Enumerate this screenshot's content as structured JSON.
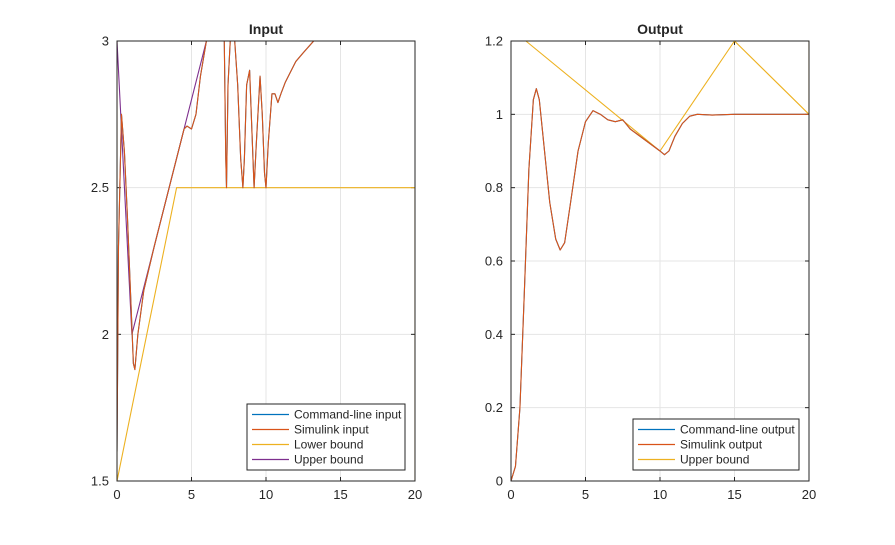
{
  "chart_data": [
    {
      "type": "line",
      "title": "Input",
      "xlabel": "",
      "ylabel": "",
      "xlim": [
        0,
        20
      ],
      "ylim": [
        1.5,
        3
      ],
      "xticks": [
        "0",
        "5",
        "10",
        "15",
        "20"
      ],
      "yticks": [
        "1.5",
        "2",
        "2.5",
        "3"
      ],
      "grid": true,
      "legend_position": "bottom-right",
      "series": [
        {
          "name": "Command-line input",
          "color": "#0072BD",
          "points": [
            [
              0,
              1.6
            ],
            [
              0.1,
              2.3
            ],
            [
              0.3,
              2.75
            ],
            [
              0.5,
              2.62
            ],
            [
              0.7,
              2.4
            ],
            [
              0.9,
              2.15
            ],
            [
              1.1,
              1.9
            ],
            [
              1.2,
              1.88
            ],
            [
              1.4,
              2.0
            ],
            [
              1.8,
              2.15
            ],
            [
              2.5,
              2.3
            ],
            [
              3.5,
              2.5
            ],
            [
              4.5,
              2.7
            ],
            [
              4.7,
              2.71
            ],
            [
              5.0,
              2.7
            ],
            [
              5.3,
              2.75
            ],
            [
              5.6,
              2.88
            ],
            [
              6.0,
              3.0
            ],
            [
              7.2,
              3.0
            ],
            [
              7.3,
              2.6
            ],
            [
              7.35,
              2.5
            ],
            [
              7.45,
              2.85
            ],
            [
              7.6,
              3.0
            ],
            [
              7.9,
              3.0
            ],
            [
              8.1,
              2.85
            ],
            [
              8.3,
              2.6
            ],
            [
              8.45,
              2.5
            ],
            [
              8.55,
              2.6
            ],
            [
              8.7,
              2.85
            ],
            [
              8.9,
              2.9
            ],
            [
              9.05,
              2.7
            ],
            [
              9.2,
              2.5
            ],
            [
              9.35,
              2.65
            ],
            [
              9.6,
              2.88
            ],
            [
              9.75,
              2.75
            ],
            [
              9.9,
              2.55
            ],
            [
              10.0,
              2.5
            ],
            [
              10.15,
              2.65
            ],
            [
              10.4,
              2.82
            ],
            [
              10.6,
              2.82
            ],
            [
              10.8,
              2.79
            ],
            [
              11.0,
              2.82
            ],
            [
              11.3,
              2.86
            ],
            [
              11.6,
              2.89
            ],
            [
              12.0,
              2.93
            ],
            [
              12.5,
              2.96
            ],
            [
              13.2,
              3.0
            ],
            [
              20,
              3.0
            ]
          ]
        },
        {
          "name": "Simulink input",
          "color": "#D95319",
          "points": [
            [
              0,
              1.6
            ],
            [
              0.1,
              2.3
            ],
            [
              0.3,
              2.75
            ],
            [
              0.5,
              2.62
            ],
            [
              0.7,
              2.4
            ],
            [
              0.9,
              2.15
            ],
            [
              1.1,
              1.9
            ],
            [
              1.2,
              1.88
            ],
            [
              1.4,
              2.0
            ],
            [
              1.8,
              2.15
            ],
            [
              2.5,
              2.3
            ],
            [
              3.5,
              2.5
            ],
            [
              4.5,
              2.7
            ],
            [
              4.7,
              2.71
            ],
            [
              5.0,
              2.7
            ],
            [
              5.3,
              2.75
            ],
            [
              5.6,
              2.88
            ],
            [
              6.0,
              3.0
            ],
            [
              7.2,
              3.0
            ],
            [
              7.3,
              2.6
            ],
            [
              7.35,
              2.5
            ],
            [
              7.45,
              2.85
            ],
            [
              7.6,
              3.0
            ],
            [
              7.9,
              3.0
            ],
            [
              8.1,
              2.85
            ],
            [
              8.3,
              2.6
            ],
            [
              8.45,
              2.5
            ],
            [
              8.55,
              2.6
            ],
            [
              8.7,
              2.85
            ],
            [
              8.9,
              2.9
            ],
            [
              9.05,
              2.7
            ],
            [
              9.2,
              2.5
            ],
            [
              9.35,
              2.65
            ],
            [
              9.6,
              2.88
            ],
            [
              9.75,
              2.75
            ],
            [
              9.9,
              2.55
            ],
            [
              10.0,
              2.5
            ],
            [
              10.15,
              2.65
            ],
            [
              10.4,
              2.82
            ],
            [
              10.6,
              2.82
            ],
            [
              10.8,
              2.79
            ],
            [
              11.0,
              2.82
            ],
            [
              11.3,
              2.86
            ],
            [
              11.6,
              2.89
            ],
            [
              12.0,
              2.93
            ],
            [
              12.5,
              2.96
            ],
            [
              13.2,
              3.0
            ],
            [
              20,
              3.0
            ]
          ]
        },
        {
          "name": "Lower bound",
          "color": "#EDB120",
          "points": [
            [
              0,
              1.5
            ],
            [
              0,
              3.0
            ],
            [
              0,
              1.5
            ],
            [
              4.0,
              2.5
            ],
            [
              20,
              2.5
            ],
            [
              20,
              1.5
            ]
          ]
        },
        {
          "name": "Upper bound",
          "color": "#7E2F8E",
          "points": [
            [
              0,
              3.0
            ],
            [
              1.0,
              2.0
            ],
            [
              6.0,
              3.0
            ],
            [
              20,
              3.0
            ]
          ]
        }
      ]
    },
    {
      "type": "line",
      "title": "Output",
      "xlabel": "",
      "ylabel": "",
      "xlim": [
        0,
        20
      ],
      "ylim": [
        0,
        1.2
      ],
      "xticks": [
        "0",
        "5",
        "10",
        "15",
        "20"
      ],
      "yticks": [
        "0",
        "0.2",
        "0.4",
        "0.6",
        "0.8",
        "1",
        "1.2"
      ],
      "grid": true,
      "legend_position": "bottom-right",
      "series": [
        {
          "name": "Command-line output",
          "color": "#0072BD",
          "points": [
            [
              0,
              0
            ],
            [
              0.3,
              0.04
            ],
            [
              0.6,
              0.2
            ],
            [
              0.9,
              0.52
            ],
            [
              1.2,
              0.85
            ],
            [
              1.5,
              1.04
            ],
            [
              1.7,
              1.07
            ],
            [
              1.9,
              1.04
            ],
            [
              2.2,
              0.92
            ],
            [
              2.6,
              0.76
            ],
            [
              3.0,
              0.66
            ],
            [
              3.3,
              0.63
            ],
            [
              3.6,
              0.65
            ],
            [
              4.0,
              0.76
            ],
            [
              4.5,
              0.9
            ],
            [
              5.0,
              0.98
            ],
            [
              5.5,
              1.01
            ],
            [
              6.0,
              1.0
            ],
            [
              6.5,
              0.985
            ],
            [
              7.0,
              0.98
            ],
            [
              7.5,
              0.985
            ],
            [
              8.0,
              0.96
            ],
            [
              8.5,
              0.945
            ],
            [
              9.0,
              0.93
            ],
            [
              9.5,
              0.915
            ],
            [
              10.0,
              0.9
            ],
            [
              10.3,
              0.89
            ],
            [
              10.6,
              0.9
            ],
            [
              11.0,
              0.94
            ],
            [
              11.5,
              0.975
            ],
            [
              12.0,
              0.995
            ],
            [
              12.5,
              1.0
            ],
            [
              13.5,
              0.998
            ],
            [
              15,
              1.0
            ],
            [
              20,
              1.0
            ]
          ]
        },
        {
          "name": "Simulink output",
          "color": "#D95319",
          "points": [
            [
              0,
              0
            ],
            [
              0.3,
              0.04
            ],
            [
              0.6,
              0.2
            ],
            [
              0.9,
              0.52
            ],
            [
              1.2,
              0.85
            ],
            [
              1.5,
              1.04
            ],
            [
              1.7,
              1.07
            ],
            [
              1.9,
              1.04
            ],
            [
              2.2,
              0.92
            ],
            [
              2.6,
              0.76
            ],
            [
              3.0,
              0.66
            ],
            [
              3.3,
              0.63
            ],
            [
              3.6,
              0.65
            ],
            [
              4.0,
              0.76
            ],
            [
              4.5,
              0.9
            ],
            [
              5.0,
              0.98
            ],
            [
              5.5,
              1.01
            ],
            [
              6.0,
              1.0
            ],
            [
              6.5,
              0.985
            ],
            [
              7.0,
              0.98
            ],
            [
              7.5,
              0.985
            ],
            [
              8.0,
              0.96
            ],
            [
              8.5,
              0.945
            ],
            [
              9.0,
              0.93
            ],
            [
              9.5,
              0.915
            ],
            [
              10.0,
              0.9
            ],
            [
              10.3,
              0.89
            ],
            [
              10.6,
              0.9
            ],
            [
              11.0,
              0.94
            ],
            [
              11.5,
              0.975
            ],
            [
              12.0,
              0.995
            ],
            [
              12.5,
              1.0
            ],
            [
              13.5,
              0.998
            ],
            [
              15,
              1.0
            ],
            [
              20,
              1.0
            ]
          ]
        },
        {
          "name": "Upper bound",
          "color": "#EDB120",
          "points": [
            [
              0,
              1.2
            ],
            [
              1.0,
              1.2
            ],
            [
              10.0,
              0.9
            ],
            [
              15.0,
              1.2
            ],
            [
              20.0,
              1.0
            ],
            [
              20.0,
              1.2
            ]
          ]
        }
      ]
    }
  ]
}
